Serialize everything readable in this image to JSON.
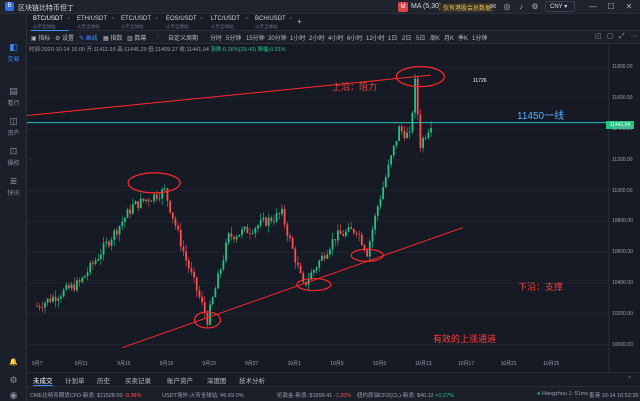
{
  "app": {
    "title": "区块链比特币但丁",
    "logo_glyph": "B"
  },
  "titlebar": {
    "ma_badge": "M",
    "ma_text": "MA (5,30)",
    "ad_text": "仅有港股会员数据",
    "currency": "CNY",
    "currency_arrow": "▾"
  },
  "sidebar": [
    {
      "label": "交易",
      "icon": "chart-icon",
      "glyph": "◧"
    },
    {
      "label": "看行",
      "icon": "quote-icon",
      "glyph": "▤"
    },
    {
      "label": "资产",
      "icon": "wallet-icon",
      "glyph": "◫"
    },
    {
      "label": "操权",
      "icon": "key-icon",
      "glyph": "⊡"
    },
    {
      "label": "快讯",
      "icon": "news-icon",
      "glyph": "≣"
    }
  ],
  "sidebar_bottom": {
    "bell_glyph": "🔔",
    "settings_glyph": "⚙",
    "user_glyph": "◉"
  },
  "tabs": [
    {
      "symbol": "BTC/USDT",
      "sub": "火币全球站"
    },
    {
      "symbol": "ETH/USDT",
      "sub": "火币全球站"
    },
    {
      "symbol": "ETC/USDT",
      "sub": "火币全球站"
    },
    {
      "symbol": "EOS/USDT",
      "sub": "火币全球站"
    },
    {
      "symbol": "LTC/USDT",
      "sub": "火币全球站"
    },
    {
      "symbol": "BCH/USDT",
      "sub": "火币全球站"
    }
  ],
  "toolbar": {
    "left": [
      "指标",
      "设置",
      "画线",
      "指数",
      "数幕"
    ],
    "custom": "自定义周期",
    "periods": [
      "分时",
      "5分钟",
      "15分钟",
      "30分钟",
      "1小时",
      "2小时",
      "4小时",
      "6小时",
      "12小时",
      "1日",
      "2日",
      "5日",
      "周K",
      "月K",
      "季K",
      "1分钟"
    ]
  },
  "ohlc": {
    "time": "时间:2020-10-14 16:00",
    "open": "开:11411.93",
    "high": "高:11445.20",
    "low": "低:11409.27",
    "close": "收:11441.04",
    "change": "涨跌:0.26%(29.43)",
    "amplitude": "振幅:0.31%"
  },
  "annotations": {
    "upper": "上沿：阻力",
    "line": "11450一线",
    "lower": "下沿：支撑",
    "channel": "有效的上涨通道",
    "high_label": "11726"
  },
  "chart_data": {
    "type": "candlestick",
    "symbol": "BTC/USDT",
    "current_price": "11441.04",
    "y_ticks": [
      "11800.00",
      "11600.00",
      "11400.00",
      "11200.00",
      "11000.00",
      "10800.00",
      "10600.00",
      "10400.00",
      "10200.00",
      "10000.00"
    ],
    "x_ticks": [
      "9月7",
      "9月11",
      "9月15",
      "9月19",
      "9月23",
      "9月27",
      "10月1",
      "10月5",
      "10月9",
      "10月13",
      "10月17",
      "10月21",
      "10月25"
    ],
    "trend_points": [
      {
        "date": "9月7",
        "price": 10250
      },
      {
        "date": "9月11",
        "price": 10400
      },
      {
        "date": "9月14",
        "price": 10700
      },
      {
        "date": "9月16",
        "price": 10900
      },
      {
        "date": "9月19",
        "price": 11000
      },
      {
        "date": "9月21",
        "price": 10550
      },
      {
        "date": "9月23",
        "price": 10160
      },
      {
        "date": "9月25",
        "price": 10700
      },
      {
        "date": "9月27",
        "price": 10750
      },
      {
        "date": "9月30",
        "price": 10850
      },
      {
        "date": "10月2",
        "price": 10380
      },
      {
        "date": "10月5",
        "price": 10700
      },
      {
        "date": "10月7",
        "price": 10750
      },
      {
        "date": "10月8",
        "price": 10600
      },
      {
        "date": "10月9",
        "price": 10900
      },
      {
        "date": "10月11",
        "price": 11400
      },
      {
        "date": "10月12",
        "price": 11350
      },
      {
        "date": "10月12",
        "price": 11700
      },
      {
        "date": "10月13",
        "price": 11300
      },
      {
        "date": "10月14",
        "price": 11441
      }
    ],
    "channel_upper": [
      {
        "date": "9月5",
        "price": 11480
      },
      {
        "date": "10月14",
        "price": 11750
      }
    ],
    "channel_lower": [
      {
        "date": "9月15",
        "price": 9980
      },
      {
        "date": "10月17",
        "price": 10760
      }
    ],
    "horizontal_line": 11441.04,
    "ellipses": [
      {
        "date": "9月18",
        "price": 11050
      },
      {
        "date": "9月23",
        "price": 10160
      },
      {
        "date": "10月3",
        "price": 10390
      },
      {
        "date": "10月8",
        "price": 10580
      },
      {
        "date": "10月13",
        "price": 11740
      }
    ],
    "colors": {
      "up": "#26c281",
      "down": "#ff4d4f",
      "annotation": "#ff2a2a",
      "level_line": "#26c2c2"
    }
  },
  "bottom_tabs": [
    "未成交",
    "计划单",
    "历史",
    "买卖记录",
    "账户资产",
    "深度图",
    "技术分析"
  ],
  "ticker": [
    {
      "name": "CME比特币期货CFD-新浪:",
      "value": "$11528.00",
      "change": "-0.38%",
      "dir": "dn"
    },
    {
      "name": "USDT场外-火币全球站:",
      "value": "¥6.69",
      "change": "0%",
      "dir": "flat"
    },
    {
      "name": "伦敦金-新浪:",
      "value": "$1899.41",
      "change": "-1.20%",
      "dir": "dn"
    },
    {
      "name": "纽约原油CFD(CL)-新浪:",
      "value": "$40.12",
      "change": "+0.27%",
      "dir": "up"
    }
  ],
  "status": {
    "connection": "Hangzhou 1: 51ms",
    "clock": "香港 10-14 16:52:35"
  }
}
